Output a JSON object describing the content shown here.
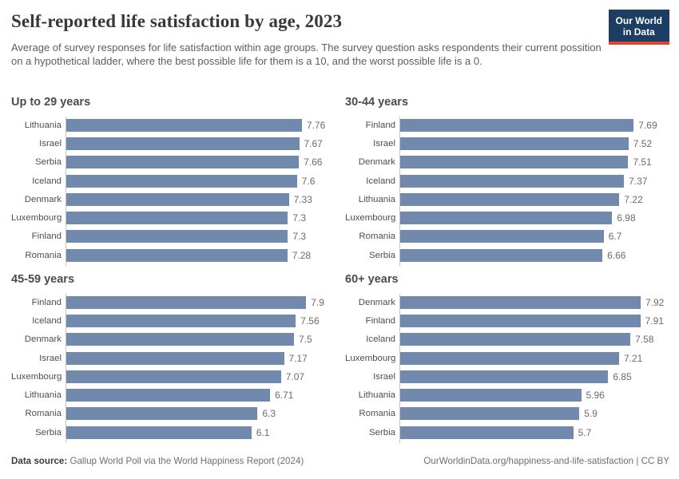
{
  "header": {
    "title": "Self-reported life satisfaction by age, 2023",
    "subtitle": "Average of survey responses for life satisfaction within age groups. The survey question asks respondents their current possition on a hypothetical ladder, where the best possible life for them is a 10, and the worst possible life is a 0.",
    "logo": {
      "line1": "Our World",
      "line2": "in Data"
    }
  },
  "chart_data": {
    "type": "bar",
    "orientation": "horizontal",
    "shared_xlim": [
      0,
      7.92
    ],
    "grid": false,
    "legend": "none",
    "bar_color": "#7089ad",
    "axis_color": "#c6c6c6",
    "panels": [
      {
        "title": "Up to 29 years",
        "categories": [
          "Lithuania",
          "Israel",
          "Serbia",
          "Iceland",
          "Denmark",
          "Luxembourg",
          "Finland",
          "Romania"
        ],
        "values": [
          7.76,
          7.67,
          7.66,
          7.6,
          7.33,
          7.3,
          7.3,
          7.28
        ]
      },
      {
        "title": "30-44 years",
        "categories": [
          "Finland",
          "Israel",
          "Denmark",
          "Iceland",
          "Lithuania",
          "Luxembourg",
          "Romania",
          "Serbia"
        ],
        "values": [
          7.69,
          7.52,
          7.51,
          7.37,
          7.22,
          6.98,
          6.7,
          6.66
        ]
      },
      {
        "title": "45-59 years",
        "categories": [
          "Finland",
          "Iceland",
          "Denmark",
          "Israel",
          "Luxembourg",
          "Lithuania",
          "Romania",
          "Serbia"
        ],
        "values": [
          7.9,
          7.56,
          7.5,
          7.17,
          7.07,
          6.71,
          6.3,
          6.1
        ]
      },
      {
        "title": "60+ years",
        "categories": [
          "Denmark",
          "Finland",
          "Iceland",
          "Luxembourg",
          "Israel",
          "Lithuania",
          "Romania",
          "Serbia"
        ],
        "values": [
          7.92,
          7.91,
          7.58,
          7.21,
          6.85,
          5.96,
          5.9,
          5.7
        ]
      }
    ]
  },
  "footer": {
    "source_label": "Data source:",
    "source_text": " Gallup World Poll via the World Happiness Report (2024)",
    "citation": "OurWorldinData.org/happiness-and-life-satisfaction | CC BY"
  }
}
